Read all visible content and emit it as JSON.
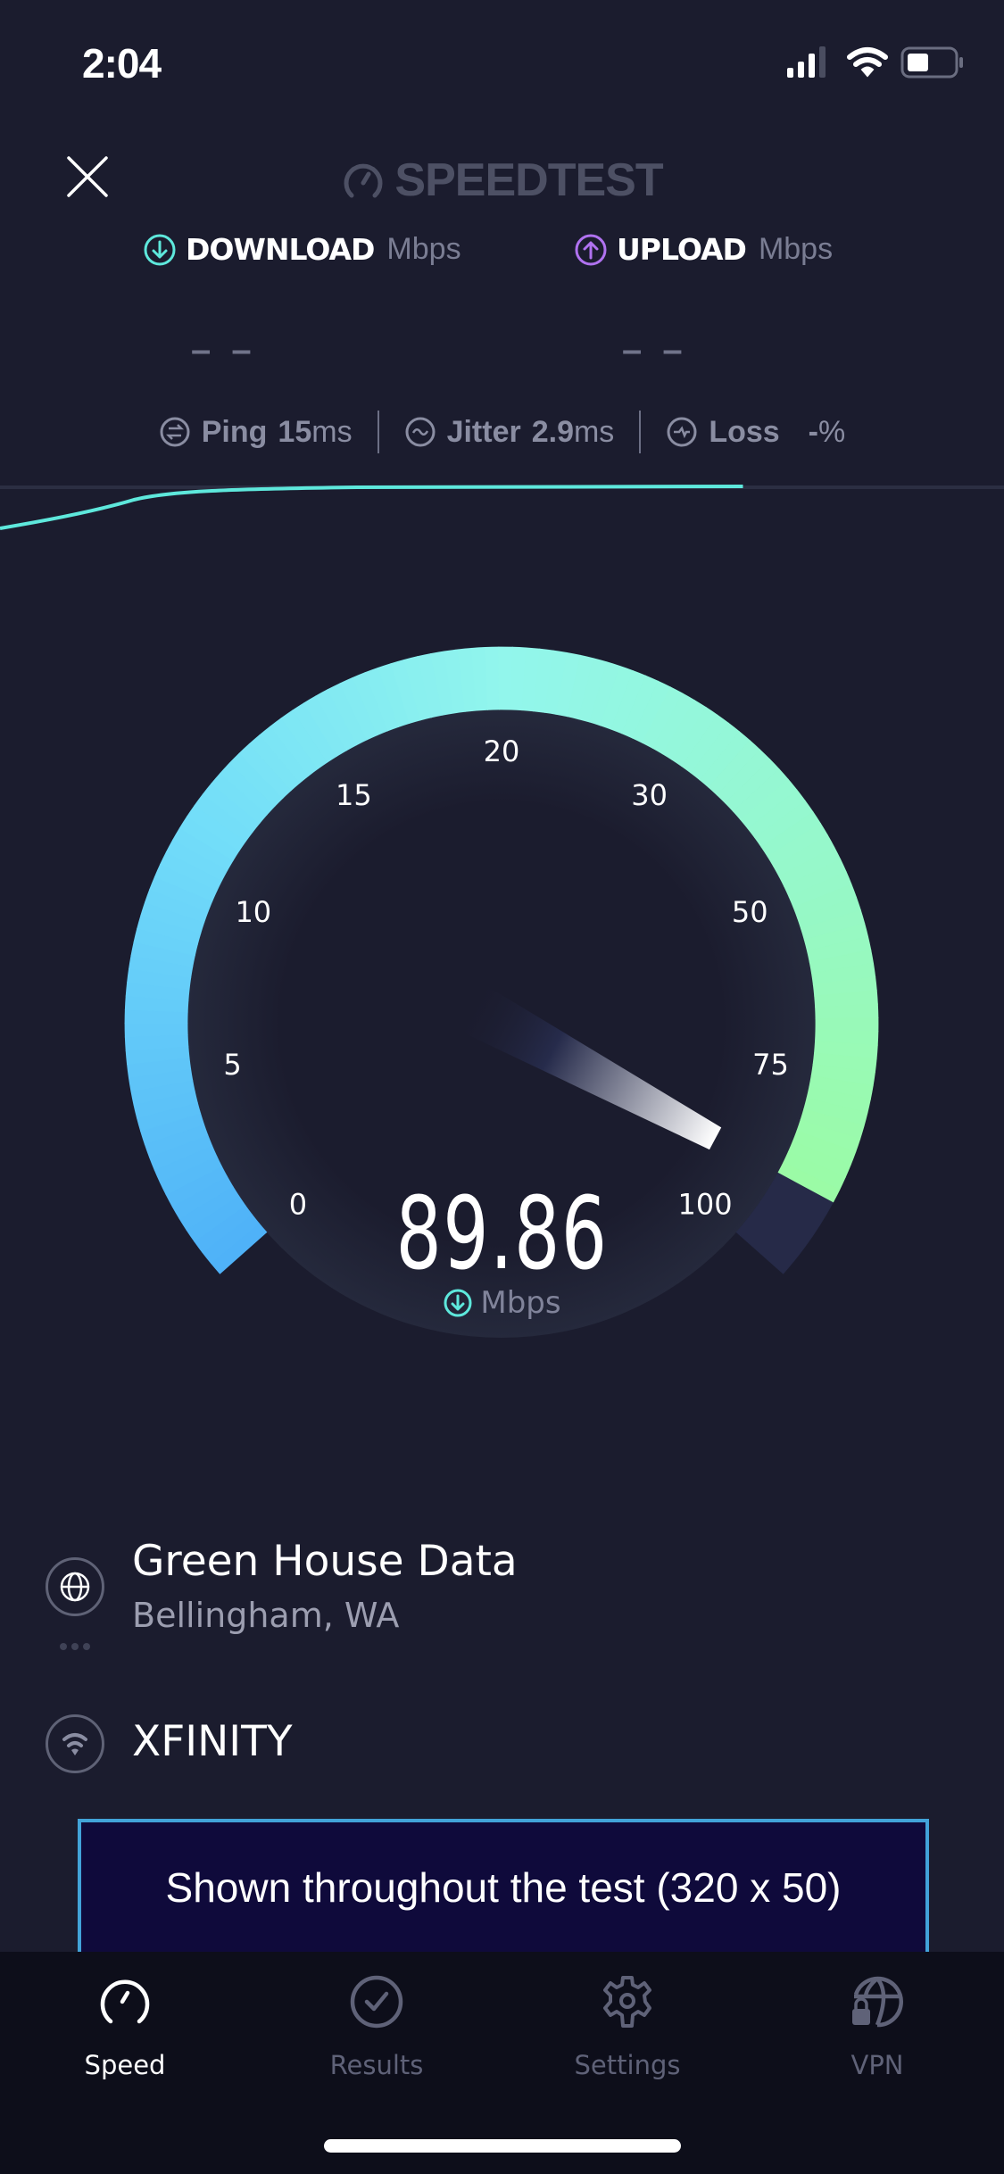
{
  "status_bar": {
    "time": "2:04",
    "battery_level": 0.45,
    "icons": [
      "cellular-signal-icon",
      "wifi-icon",
      "battery-icon"
    ]
  },
  "header": {
    "close_icon": "close-icon",
    "logo_text": "SPEEDTEST"
  },
  "metrics": {
    "download": {
      "label": "DOWNLOAD",
      "unit": "Mbps",
      "value": "– –",
      "color": "#5ee8dc"
    },
    "upload": {
      "label": "UPLOAD",
      "unit": "Mbps",
      "value": "– –",
      "color": "#b072f0"
    }
  },
  "stats": {
    "ping": {
      "label": "Ping",
      "value": "15",
      "unit": "ms"
    },
    "jitter": {
      "label": "Jitter",
      "value": "2.9",
      "unit": "ms"
    },
    "loss": {
      "label": "Loss",
      "value": "-",
      "unit": "%"
    }
  },
  "progress": {
    "test_progress": 0.74,
    "line_color": "#5ee8dc"
  },
  "gauge": {
    "scale_labels": [
      "0",
      "5",
      "10",
      "15",
      "20",
      "30",
      "50",
      "75",
      "100"
    ],
    "scale_values": [
      0,
      5,
      10,
      15,
      20,
      30,
      50,
      75,
      100
    ],
    "value": 89.86,
    "value_text": "89.86",
    "unit": "Mbps",
    "colors": {
      "start": "#4fb2f8",
      "middle": "#92f6ec",
      "end": "#9cfc9c",
      "track": "#262a48"
    }
  },
  "server": {
    "name": "Green House Data",
    "location": "Bellingham, WA"
  },
  "isp": {
    "name": "XFINITY"
  },
  "ad": {
    "text": "Shown throughout the test (320 x 50)"
  },
  "tabs": [
    {
      "label": "Speed",
      "icon": "speedometer-icon",
      "active": true
    },
    {
      "label": "Results",
      "icon": "check-circle-icon",
      "active": false
    },
    {
      "label": "Settings",
      "icon": "gear-icon",
      "active": false
    },
    {
      "label": "VPN",
      "icon": "globe-lock-icon",
      "active": false
    }
  ]
}
